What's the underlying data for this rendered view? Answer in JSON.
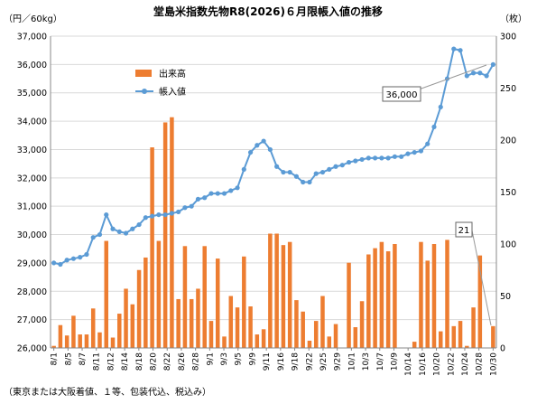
{
  "chart_data": {
    "type": "bar+line",
    "title": "堂島米指数先物R8(2026)６月限帳入値の推移",
    "left_axis_unit": "（円／60kg）",
    "right_axis_unit": "（枚）",
    "note": "（東京または大阪着値、１等、包装代込、税込み）",
    "left_ylim": [
      26000,
      37000
    ],
    "left_ticks": [
      "26,000",
      "27,000",
      "28,000",
      "29,000",
      "30,000",
      "31,000",
      "32,000",
      "33,000",
      "34,000",
      "35,000",
      "36,000",
      "37,000"
    ],
    "right_ylim": [
      0,
      300
    ],
    "right_ticks": [
      "0",
      "50",
      "100",
      "150",
      "200",
      "250",
      "300"
    ],
    "x_tick_labels": [
      "8/1",
      "8/5",
      "8/7",
      "8/11",
      "8/12",
      "8/14",
      "8/18",
      "8/20",
      "8/22",
      "8/26",
      "8/28",
      "9/1",
      "9/3",
      "9/5",
      "9/9",
      "9/11",
      "9/16",
      "9/18",
      "9/22",
      "9/25",
      "9/29",
      "10/1",
      "10/3",
      "10/7",
      "10/9",
      "10/14",
      "10/16",
      "10/20",
      "10/22",
      "10/24",
      "10/28",
      "10/30"
    ],
    "legend": {
      "bar": "出来高",
      "line": "帳入値"
    },
    "colors": {
      "bar": "#ed7d31",
      "line": "#5b9bd5",
      "marker": "#5b9bd5"
    },
    "series": [
      {
        "name": "出来高",
        "axis": "right",
        "values": [
          2,
          22,
          12,
          31,
          13,
          13,
          38,
          15,
          103,
          10,
          33,
          57,
          42,
          75,
          87,
          193,
          103,
          217,
          222,
          47,
          98,
          47,
          57,
          98,
          26,
          86,
          11,
          50,
          39,
          88,
          40,
          13,
          18,
          110,
          110,
          99,
          102,
          46,
          35,
          7,
          26,
          50,
          11,
          23,
          0,
          82,
          20,
          45,
          90,
          96,
          102,
          93,
          100,
          0,
          0,
          6,
          102,
          84,
          100,
          16,
          104,
          21,
          26,
          2,
          39,
          89,
          0,
          21
        ]
      },
      {
        "name": "帳入値",
        "axis": "left",
        "values": [
          29000,
          28950,
          29100,
          29150,
          29200,
          29300,
          29900,
          30000,
          30700,
          30200,
          30100,
          30050,
          30200,
          30350,
          30600,
          30650,
          30700,
          30700,
          30750,
          30800,
          30950,
          31000,
          31250,
          31300,
          31450,
          31450,
          31450,
          31550,
          31650,
          32300,
          32900,
          33150,
          33300,
          33000,
          32400,
          32200,
          32200,
          32050,
          31850,
          31850,
          32150,
          32200,
          32300,
          32400,
          32450,
          32550,
          32600,
          32650,
          32700,
          32700,
          32700,
          32700,
          32750,
          32750,
          32850,
          32900,
          32950,
          33200,
          33800,
          34500,
          35500,
          36550,
          36500,
          35600,
          35700,
          35700,
          35600,
          36000
        ]
      }
    ],
    "callouts": [
      {
        "text": "36,000"
      },
      {
        "text": "21"
      }
    ]
  }
}
